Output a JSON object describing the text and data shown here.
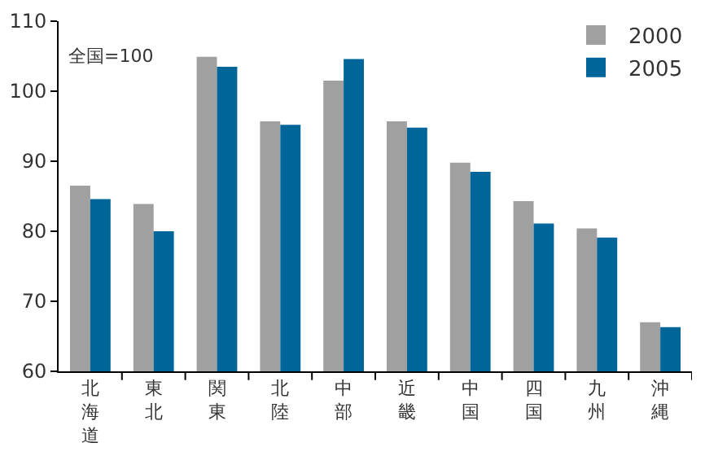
{
  "chart_data": {
    "type": "bar",
    "categories": [
      "北海道",
      "東北",
      "関東",
      "北陸",
      "中部",
      "近畿",
      "中国",
      "四国",
      "九州",
      "沖縄"
    ],
    "series": [
      {
        "name": "2000",
        "color": "#a0a0a0",
        "values": [
          86.5,
          83.9,
          104.9,
          95.7,
          101.5,
          95.7,
          89.8,
          84.3,
          80.4,
          67.0
        ]
      },
      {
        "name": "2005",
        "color": "#006699",
        "values": [
          84.6,
          80.0,
          103.5,
          95.2,
          104.6,
          94.8,
          88.5,
          81.1,
          79.1,
          66.3
        ]
      }
    ],
    "ylim": [
      60,
      110
    ],
    "yticks": [
      60,
      70,
      80,
      90,
      100,
      110
    ],
    "grid": false,
    "legend": "top right",
    "annotations": [
      "全国=100"
    ]
  }
}
